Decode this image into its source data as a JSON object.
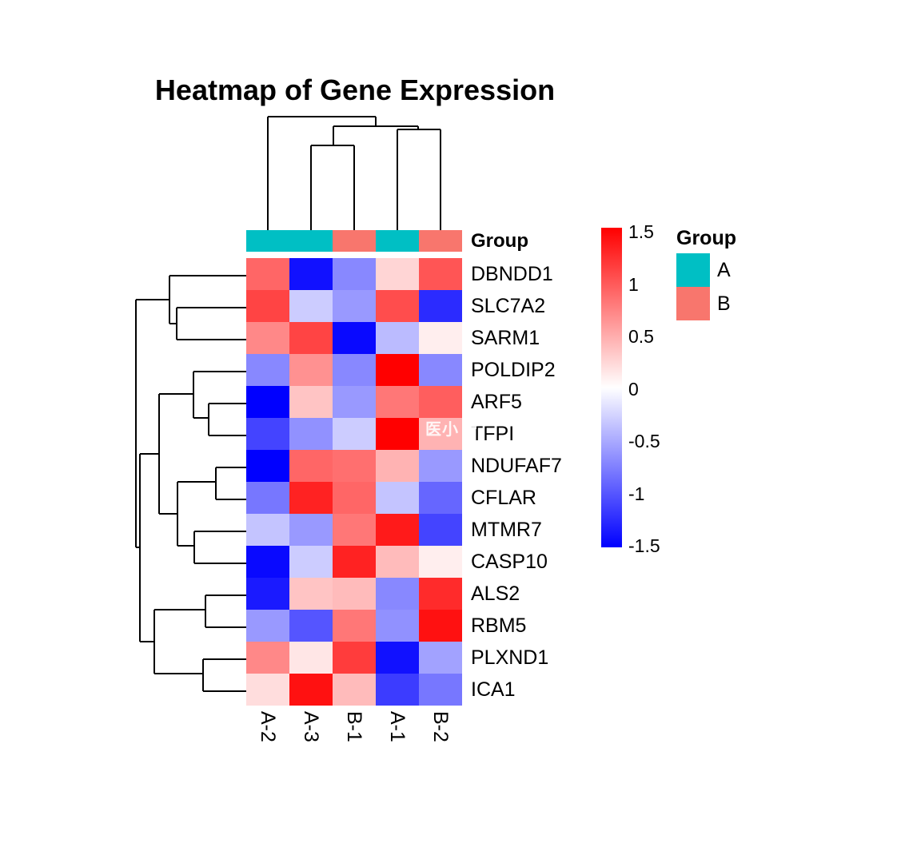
{
  "title": "Heatmap of Gene Expression",
  "watermark": "医小",
  "chart_data": {
    "type": "heatmap",
    "title": "Heatmap of Gene Expression",
    "columns": [
      "A-2",
      "A-3",
      "B-1",
      "A-1",
      "B-2"
    ],
    "column_groups": [
      "A",
      "A",
      "B",
      "A",
      "B"
    ],
    "rows": [
      "DBNDD1",
      "SLC7A2",
      "SARM1",
      "POLDIP2",
      "ARF5",
      "TFPI",
      "NDUFAF7",
      "CFLAR",
      "MTMR7",
      "CASP10",
      "ALS2",
      "RBM5",
      "PLXND1",
      "ICA1"
    ],
    "values": [
      [
        0.9,
        -1.4,
        -0.7,
        0.25,
        1.0
      ],
      [
        1.1,
        -0.3,
        -0.6,
        1.05,
        -1.25
      ],
      [
        0.7,
        1.1,
        -1.45,
        -0.4,
        0.1
      ],
      [
        -0.7,
        0.65,
        -0.7,
        1.5,
        -0.7
      ],
      [
        -1.5,
        0.35,
        -0.6,
        0.8,
        0.95
      ],
      [
        -1.1,
        -0.65,
        -0.3,
        1.5,
        0.45
      ],
      [
        -1.5,
        0.9,
        0.85,
        0.45,
        -0.6
      ],
      [
        -0.8,
        1.3,
        0.9,
        -0.35,
        -0.9
      ],
      [
        -0.35,
        -0.6,
        0.8,
        1.35,
        -1.1
      ],
      [
        -1.45,
        -0.3,
        1.3,
        0.4,
        0.1
      ],
      [
        -1.35,
        0.35,
        0.4,
        -0.7,
        1.25
      ],
      [
        -0.6,
        -1.0,
        0.8,
        -0.65,
        1.4
      ],
      [
        0.7,
        0.15,
        1.15,
        -1.4,
        -0.55
      ],
      [
        0.2,
        1.4,
        0.4,
        -1.15,
        -0.8
      ]
    ],
    "scale": {
      "min": -1.5,
      "max": 1.5,
      "ticks": [
        "1.5",
        "1",
        "0.5",
        "0",
        "-0.5",
        "-1",
        "-1.5"
      ],
      "color_high": "#FF0000",
      "color_mid": "#FFFFFF",
      "color_low": "#0000FF"
    },
    "annotation": {
      "label": "Group",
      "legend_title": "Group",
      "classes": [
        {
          "name": "A",
          "color": "#00BFC4"
        },
        {
          "name": "B",
          "color": "#F8766D"
        }
      ]
    },
    "col_dendrogram_segments": [
      [
        335,
        146,
        470,
        146
      ],
      [
        335,
        146,
        335,
        288
      ],
      [
        470,
        146,
        470,
        158
      ],
      [
        417,
        158,
        523,
        158
      ],
      [
        417,
        158,
        417,
        182
      ],
      [
        389,
        182,
        443,
        182
      ],
      [
        389,
        182,
        389,
        288
      ],
      [
        443,
        182,
        443,
        288
      ],
      [
        523,
        158,
        523,
        162
      ],
      [
        497,
        162,
        551,
        162
      ],
      [
        497,
        162,
        497,
        288
      ],
      [
        551,
        162,
        551,
        288
      ]
    ],
    "row_dendrogram_segments": [
      [
        170,
        375,
        212,
        375
      ],
      [
        212,
        345,
        212,
        405
      ],
      [
        212,
        345,
        308,
        345
      ],
      [
        212,
        405,
        221,
        405
      ],
      [
        221,
        385,
        221,
        425
      ],
      [
        221,
        385,
        308,
        385
      ],
      [
        221,
        425,
        308,
        425
      ],
      [
        170,
        375,
        170,
        685
      ],
      [
        170,
        685,
        175,
        685
      ],
      [
        175,
        568,
        175,
        803
      ],
      [
        175,
        568,
        199,
        568
      ],
      [
        175,
        803,
        193,
        803
      ],
      [
        199,
        493,
        199,
        643
      ],
      [
        199,
        493,
        242,
        493
      ],
      [
        199,
        643,
        222,
        643
      ],
      [
        242,
        465,
        242,
        523
      ],
      [
        242,
        465,
        308,
        465
      ],
      [
        242,
        523,
        261,
        523
      ],
      [
        261,
        505,
        261,
        545
      ],
      [
        261,
        505,
        308,
        505
      ],
      [
        261,
        545,
        308,
        545
      ],
      [
        222,
        603,
        222,
        683
      ],
      [
        222,
        603,
        270,
        603
      ],
      [
        270,
        585,
        270,
        625
      ],
      [
        270,
        585,
        308,
        585
      ],
      [
        270,
        625,
        308,
        625
      ],
      [
        222,
        683,
        243,
        683
      ],
      [
        243,
        665,
        243,
        705
      ],
      [
        243,
        665,
        308,
        665
      ],
      [
        243,
        705,
        308,
        705
      ],
      [
        193,
        763,
        193,
        843
      ],
      [
        193,
        763,
        257,
        763
      ],
      [
        257,
        745,
        257,
        785
      ],
      [
        257,
        745,
        308,
        745
      ],
      [
        257,
        785,
        308,
        785
      ],
      [
        193,
        843,
        254,
        843
      ],
      [
        254,
        825,
        254,
        865
      ],
      [
        254,
        825,
        308,
        825
      ],
      [
        254,
        865,
        308,
        865
      ]
    ]
  }
}
